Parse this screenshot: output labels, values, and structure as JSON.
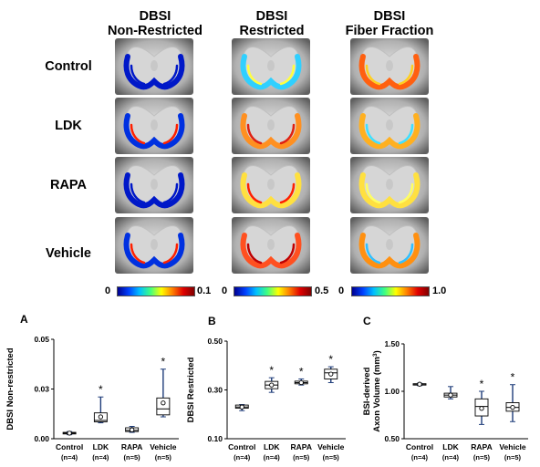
{
  "columns": [
    {
      "line1": "DBSI",
      "line2": "Non-Restricted"
    },
    {
      "line1": "DBSI",
      "line2": "Restricted"
    },
    {
      "line1": "DBSI",
      "line2": "Fiber Fraction"
    }
  ],
  "rows": [
    "Control",
    "LDK",
    "RAPA",
    "Vehicle"
  ],
  "colorbars": [
    {
      "min": "0",
      "max": "0.1"
    },
    {
      "min": "0",
      "max": "0.5"
    },
    {
      "min": "0",
      "max": "1.0"
    }
  ],
  "chart_data": [
    {
      "panel": "A",
      "type": "box",
      "ylabel": "DBSI Non-restricted",
      "ylim": [
        0,
        0.05
      ],
      "yticks": [
        "0.00",
        "0.03",
        "0.05"
      ],
      "ytick_values": [
        0,
        0.025,
        0.05
      ],
      "categories": [
        "Control\n(n=4)",
        "LDK\n(n=4)",
        "RAPA\n(n=5)",
        "Vehicle\n(n=5)"
      ],
      "cat_line1": [
        "Control",
        "LDK",
        "RAPA",
        "Vehicle"
      ],
      "cat_line2": [
        "(n=4)",
        "(n=4)",
        "(n=5)",
        "(n=5)"
      ],
      "boxes": [
        {
          "min": 0.002,
          "q1": 0.0024,
          "median": 0.0028,
          "q3": 0.0032,
          "max": 0.0036,
          "mean": 0.0028,
          "sig": ""
        },
        {
          "min": 0.008,
          "q1": 0.0085,
          "median": 0.0092,
          "q3": 0.013,
          "max": 0.021,
          "mean": 0.011,
          "sig": "*"
        },
        {
          "min": 0.0032,
          "q1": 0.0036,
          "median": 0.0042,
          "q3": 0.0055,
          "max": 0.0062,
          "mean": 0.0045,
          "sig": ""
        },
        {
          "min": 0.011,
          "q1": 0.012,
          "median": 0.015,
          "q3": 0.0205,
          "max": 0.035,
          "mean": 0.018,
          "sig": "*"
        }
      ]
    },
    {
      "panel": "B",
      "type": "box",
      "ylabel": "DBSI Restricted",
      "ylim": [
        0.1,
        0.5
      ],
      "yticks": [
        "0.10",
        "0.30",
        "0.50"
      ],
      "ytick_values": [
        0.1,
        0.3,
        0.5
      ],
      "cat_line1": [
        "Control",
        "LDK",
        "RAPA",
        "Vehicle"
      ],
      "cat_line2": [
        "(n=4)",
        "(n=4)",
        "(n=5)",
        "(n=5)"
      ],
      "boxes": [
        {
          "min": 0.215,
          "q1": 0.225,
          "median": 0.23,
          "q3": 0.238,
          "max": 0.24,
          "mean": 0.23,
          "sig": ""
        },
        {
          "min": 0.29,
          "q1": 0.305,
          "median": 0.32,
          "q3": 0.335,
          "max": 0.35,
          "mean": 0.32,
          "sig": "*"
        },
        {
          "min": 0.32,
          "q1": 0.325,
          "median": 0.33,
          "q3": 0.336,
          "max": 0.345,
          "mean": 0.33,
          "sig": "*"
        },
        {
          "min": 0.33,
          "q1": 0.345,
          "median": 0.37,
          "q3": 0.385,
          "max": 0.395,
          "mean": 0.365,
          "sig": "*"
        }
      ]
    },
    {
      "panel": "C",
      "type": "box",
      "ylabel_line1": "BSI-derived",
      "ylabel_line2": "Axon Volume (mm",
      "ylabel_sup": "3",
      "ylabel_close": ")",
      "ylim": [
        0.5,
        1.5
      ],
      "yticks": [
        "0.50",
        "1.00",
        "1.50"
      ],
      "ytick_values": [
        0.5,
        1.0,
        1.5
      ],
      "cat_line1": [
        "Control",
        "LDK",
        "RAPA",
        "Vehicle"
      ],
      "cat_line2": [
        "(n=4)",
        "(n=4)",
        "(n=5)",
        "(n=5)"
      ],
      "boxes": [
        {
          "min": 1.06,
          "q1": 1.07,
          "median": 1.075,
          "q3": 1.08,
          "max": 1.085,
          "mean": 1.075,
          "sig": ""
        },
        {
          "min": 0.92,
          "q1": 0.94,
          "median": 0.96,
          "q3": 0.98,
          "max": 1.05,
          "mean": 0.96,
          "sig": ""
        },
        {
          "min": 0.65,
          "q1": 0.74,
          "median": 0.84,
          "q3": 0.92,
          "max": 1.0,
          "mean": 0.82,
          "sig": "*"
        },
        {
          "min": 0.68,
          "q1": 0.79,
          "median": 0.83,
          "q3": 0.88,
          "max": 1.07,
          "mean": 0.83,
          "sig": "*"
        }
      ]
    }
  ]
}
